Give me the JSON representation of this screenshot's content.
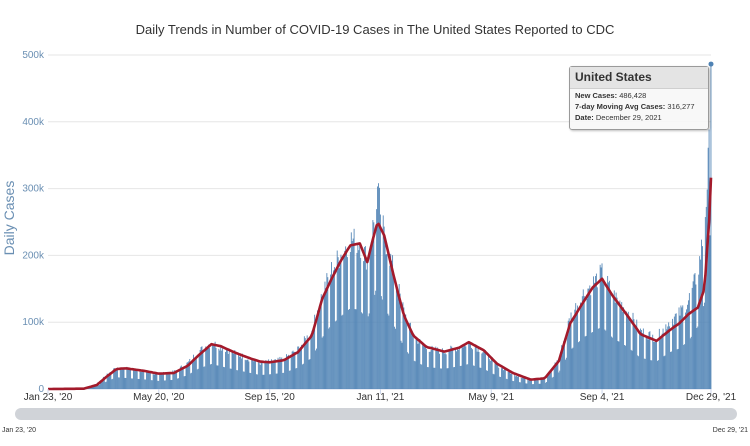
{
  "chart_data": {
    "type": "bar+line",
    "title": "Daily Trends in Number of COVID-19 Cases in The United States Reported to CDC",
    "ylabel": "Daily Cases",
    "ylim": [
      0,
      500000
    ],
    "y_ticks": [
      0,
      100000,
      200000,
      300000,
      400000,
      500000
    ],
    "y_tick_labels": [
      "0",
      "100k",
      "200k",
      "300k",
      "400k",
      "500k"
    ],
    "x_range": [
      "2020-01-23",
      "2021-12-29"
    ],
    "x_ticks": [
      "2020-01-23",
      "2020-05-20",
      "2020-09-15",
      "2021-01-11",
      "2021-05-09",
      "2021-09-04",
      "2021-12-29"
    ],
    "x_tick_labels": [
      "Jan 23, '20",
      "May 20, '20",
      "Sep 15, '20",
      "Jan 11, '21",
      "May 9, '21",
      "Sep 4, '21",
      "Dec 29, '21"
    ],
    "grid": true,
    "series": [
      {
        "kind": "bar",
        "color": "#4e82b4",
        "x": [
          "2020-01-23",
          "2020-03-01",
          "2020-03-15",
          "2020-03-25",
          "2020-04-05",
          "2020-04-15",
          "2020-04-25",
          "2020-05-05",
          "2020-05-20",
          "2020-06-05",
          "2020-06-20",
          "2020-07-01",
          "2020-07-15",
          "2020-07-25",
          "2020-08-10",
          "2020-08-25",
          "2020-09-05",
          "2020-09-15",
          "2020-09-30",
          "2020-10-15",
          "2020-10-30",
          "2020-11-10",
          "2020-11-20",
          "2020-12-01",
          "2020-12-10",
          "2020-12-20",
          "2020-12-28",
          "2021-01-04",
          "2021-01-08",
          "2021-01-15",
          "2021-01-25",
          "2021-02-05",
          "2021-02-15",
          "2021-03-01",
          "2021-03-20",
          "2021-04-05",
          "2021-04-15",
          "2021-05-01",
          "2021-05-15",
          "2021-06-01",
          "2021-06-20",
          "2021-07-05",
          "2021-07-20",
          "2021-08-01",
          "2021-08-15",
          "2021-08-25",
          "2021-09-04",
          "2021-09-15",
          "2021-10-01",
          "2021-10-15",
          "2021-11-01",
          "2021-11-15",
          "2021-11-25",
          "2021-12-05",
          "2021-12-15",
          "2021-12-22",
          "2021-12-27",
          "2021-12-29"
        ],
        "values": [
          0,
          1000,
          8000,
          20000,
          32000,
          30000,
          28000,
          26000,
          22000,
          25000,
          38000,
          55000,
          68000,
          62000,
          52000,
          44000,
          38000,
          40000,
          44000,
          58000,
          85000,
          140000,
          175000,
          200000,
          220000,
          215000,
          190000,
          245000,
          290000,
          225000,
          175000,
          115000,
          78000,
          60000,
          55000,
          62000,
          68000,
          55000,
          36000,
          22000,
          13000,
          15000,
          45000,
          105000,
          140000,
          155000,
          170000,
          140000,
          115000,
          85000,
          75000,
          100000,
          110000,
          130000,
          170000,
          235000,
          350000,
          486428
        ]
      },
      {
        "kind": "line",
        "name": "7-day Moving Avg Cases",
        "color": "#a31a2b",
        "x": [
          "2020-01-23",
          "2020-03-01",
          "2020-03-15",
          "2020-03-25",
          "2020-04-05",
          "2020-04-15",
          "2020-04-25",
          "2020-05-05",
          "2020-05-20",
          "2020-06-05",
          "2020-06-20",
          "2020-07-01",
          "2020-07-15",
          "2020-07-25",
          "2020-08-10",
          "2020-08-25",
          "2020-09-05",
          "2020-09-15",
          "2020-09-30",
          "2020-10-15",
          "2020-10-30",
          "2020-11-10",
          "2020-11-20",
          "2020-12-01",
          "2020-12-10",
          "2020-12-20",
          "2020-12-28",
          "2021-01-04",
          "2021-01-08",
          "2021-01-15",
          "2021-01-25",
          "2021-02-05",
          "2021-02-15",
          "2021-03-01",
          "2021-03-20",
          "2021-04-05",
          "2021-04-15",
          "2021-05-01",
          "2021-05-15",
          "2021-06-01",
          "2021-06-20",
          "2021-07-05",
          "2021-07-20",
          "2021-08-01",
          "2021-08-15",
          "2021-08-25",
          "2021-09-04",
          "2021-09-15",
          "2021-10-01",
          "2021-10-15",
          "2021-11-01",
          "2021-11-15",
          "2021-11-25",
          "2021-12-05",
          "2021-12-15",
          "2021-12-22",
          "2021-12-27",
          "2021-12-29"
        ],
        "values": [
          0,
          500,
          6000,
          18000,
          30000,
          31000,
          29000,
          27000,
          23000,
          24000,
          35000,
          50000,
          67000,
          64000,
          54000,
          46000,
          41000,
          40000,
          43000,
          55000,
          80000,
          135000,
          165000,
          195000,
          215000,
          218000,
          190000,
          230000,
          250000,
          230000,
          170000,
          110000,
          80000,
          63000,
          56000,
          62000,
          70000,
          58000,
          38000,
          24000,
          14000,
          16000,
          42000,
          98000,
          130000,
          152000,
          165000,
          140000,
          110000,
          82000,
          72000,
          88000,
          98000,
          112000,
          122000,
          150000,
          250000,
          316277
        ]
      }
    ],
    "tooltip": {
      "title": "United States",
      "rows": [
        {
          "label": "New Cases:",
          "value": "486,428"
        },
        {
          "label": "7-day Moving Avg Cases:",
          "value": "316,277"
        },
        {
          "label": "Date:",
          "value": "December 29, 2021"
        }
      ]
    },
    "navigator": {
      "start_label": "Jan 23, '20",
      "end_label": "Dec 29, '21"
    }
  },
  "colors": {
    "bars": "#4e82b4",
    "line": "#a31a2b",
    "grid": "#e6e6e6",
    "axis_text": "#6a8fb3"
  }
}
